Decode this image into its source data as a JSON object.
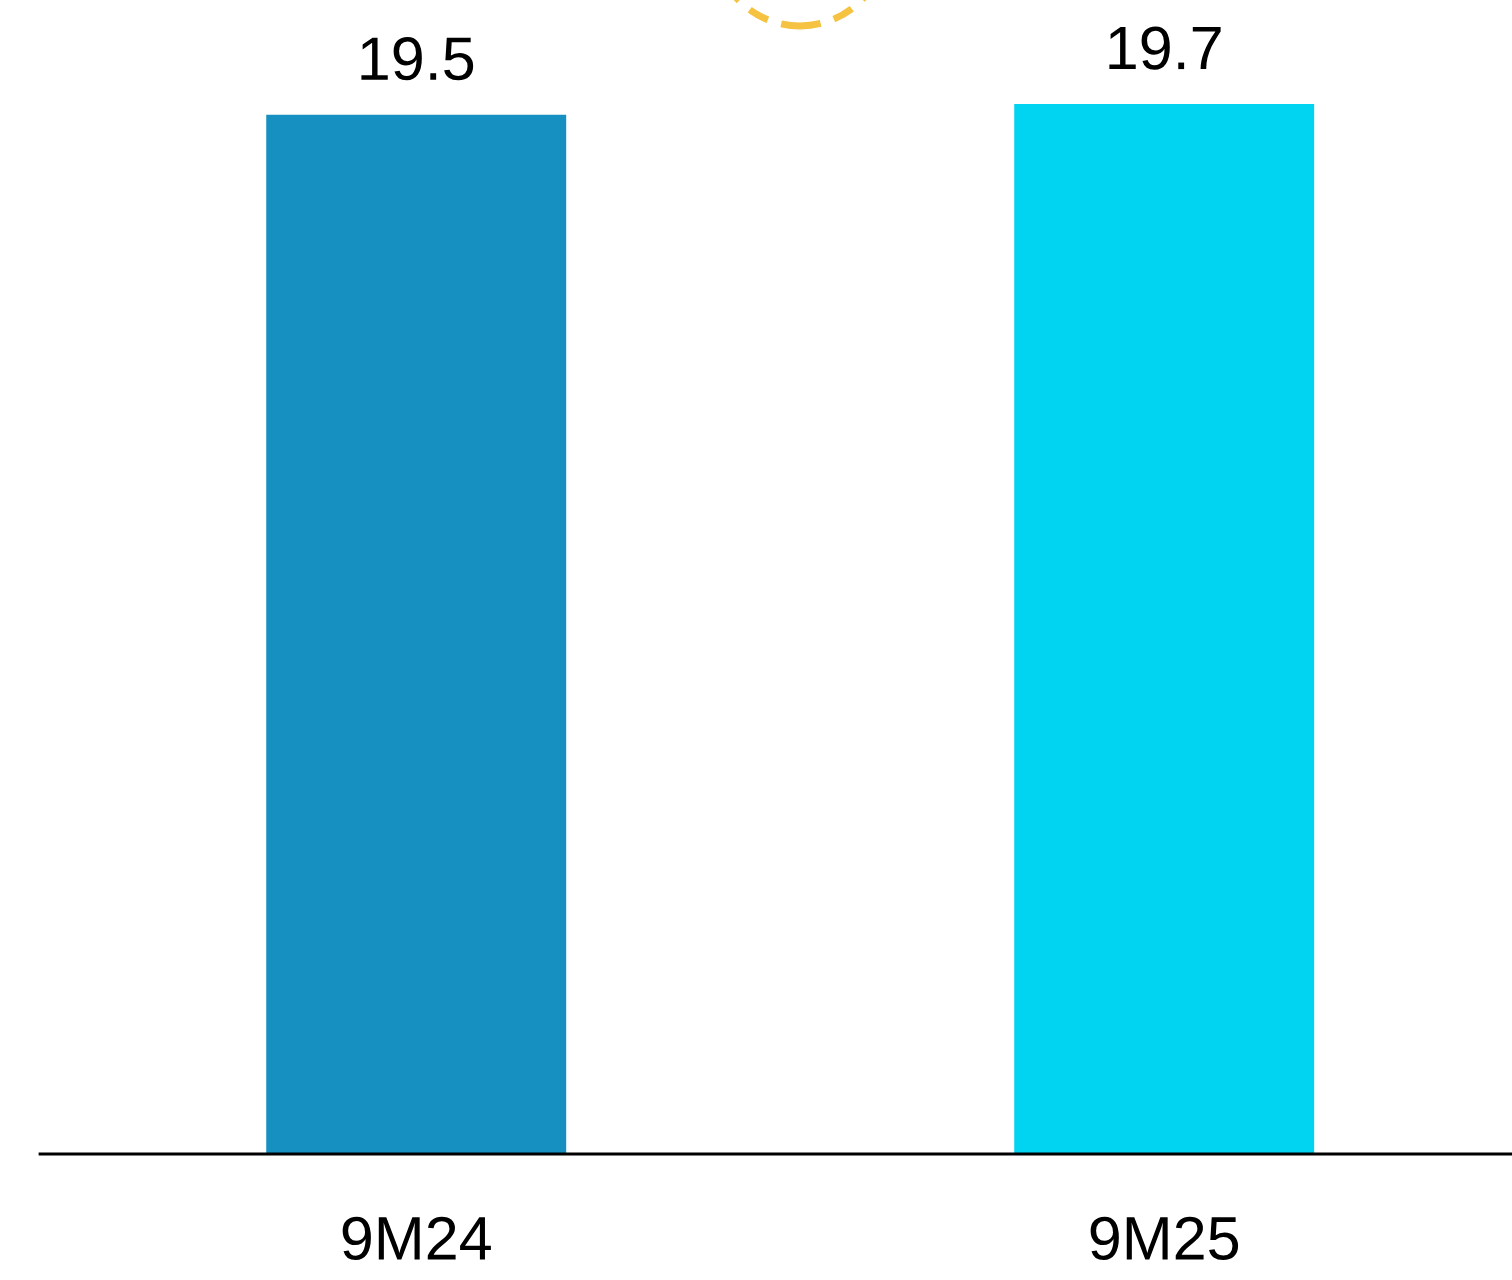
{
  "chart_data": {
    "type": "bar",
    "categories": [
      "9M24",
      "9M25"
    ],
    "values": [
      19.5,
      19.7
    ],
    "colors": [
      "#1590c0",
      "#00d4f0"
    ],
    "data_labels": true,
    "tick_labels": "x",
    "grid": false
  }
}
